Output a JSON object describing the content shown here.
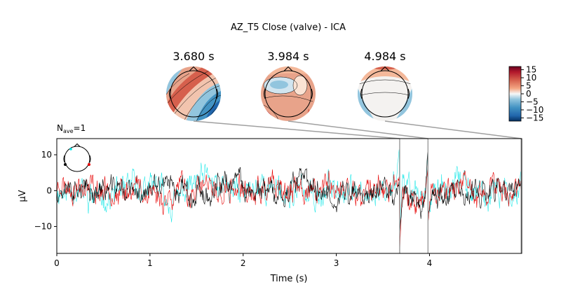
{
  "chart_data": {
    "type": "line",
    "title": "AZ_T5 Close (valve) - ICA",
    "nave_label": "N",
    "nave_sub": "ave",
    "nave_value": "=1",
    "xlabel": "Time (s)",
    "ylabel": "µV",
    "xlim": [
      0,
      4.99
    ],
    "ylim": [
      -17.5,
      14.5
    ],
    "xticks": [
      0,
      1,
      2,
      3,
      4
    ],
    "xtick_labels": [
      "0",
      "1",
      "2",
      "3",
      "4"
    ],
    "yticks": [
      10,
      0,
      -10
    ],
    "ytick_labels": [
      "10",
      "0",
      "−10"
    ],
    "series": [
      {
        "name": "cyan channel",
        "color": "#00e5e5",
        "seed": 11,
        "amp": 4.2
      },
      {
        "name": "red channel",
        "color": "#e60000",
        "seed": 23,
        "amp": 4.0
      },
      {
        "name": "black channel",
        "color": "#000000",
        "seed": 37,
        "amp": 3.6
      }
    ],
    "events": [
      {
        "t": 3.68,
        "cyan": [
          13,
          -12
        ],
        "red": [
          4,
          -17
        ],
        "black": [
          3,
          -12
        ]
      },
      {
        "t": 3.984,
        "cyan": [
          13,
          -8
        ],
        "red": [
          8,
          -9
        ],
        "black": [
          13,
          -7
        ]
      },
      {
        "t": 4.984,
        "cyan": [
          6,
          -3
        ],
        "red": [
          3,
          -4
        ],
        "black": [
          2,
          -3
        ]
      }
    ],
    "topomaps": [
      {
        "time": 3.68,
        "label": "3.680 s",
        "pattern": "diag"
      },
      {
        "time": 3.984,
        "label": "3.984 s",
        "pattern": "ring"
      },
      {
        "time": 4.984,
        "label": "4.984 s",
        "pattern": "lr"
      }
    ],
    "colorbar": {
      "min": -17,
      "max": 17,
      "ticks": [
        15,
        10,
        5,
        0,
        -5,
        -10,
        -15
      ],
      "tick_labels": [
        "15",
        "10",
        "5",
        "0",
        "−5",
        "−10",
        "−15"
      ],
      "colormap": "RdBu_r"
    },
    "colors": {
      "guide_line": "#a0a0a0",
      "axis": "#000000"
    }
  }
}
